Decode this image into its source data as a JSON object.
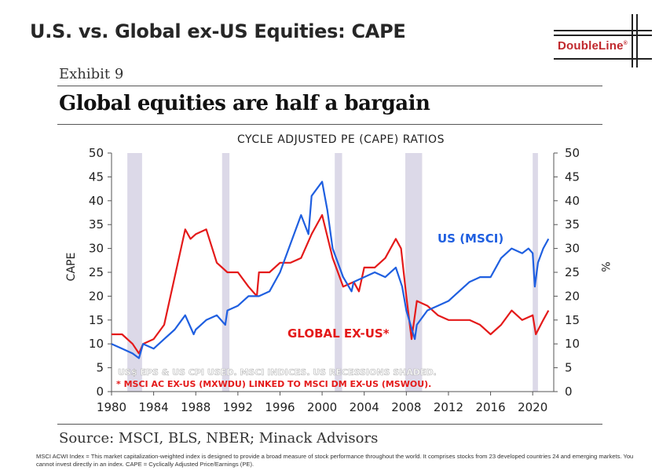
{
  "slide": {
    "title": "U.S. vs. Global ex-US Equities: CAPE",
    "logo_text": "DoubleLine",
    "logo_mark": "®",
    "exhibit_label": "Exhibit 9",
    "headline": "Global equities are half a bargain",
    "source": "Source: MSCI, BLS, NBER; Minack Advisors",
    "footnote": "MSCI ACWI Index = This market capitalization-weighted index is designed to provide a broad measure of stock performance throughout the world. It comprises stocks from 23 developed countries 24 and emerging markets. You cannot invest directly in an index. CAPE = Cyclically Adjusted Price/Earnings (PE)."
  },
  "colors": {
    "us_series": "#1f5fe0",
    "global_series": "#e41a1a",
    "recession_shading": "#dcd9e8",
    "logo_red": "#c0282d"
  },
  "chart_data": {
    "type": "line",
    "title": "CYCLE ADJUSTED PE (CAPE) RATIOS",
    "ylabel": "CAPE",
    "y2label": "%",
    "xlim": [
      1980,
      2022
    ],
    "ylim": [
      0,
      50
    ],
    "x_ticks": [
      1980,
      1984,
      1988,
      1992,
      1996,
      2000,
      2004,
      2008,
      2012,
      2016,
      2020
    ],
    "y_ticks": [
      0,
      5,
      10,
      15,
      20,
      25,
      30,
      35,
      40,
      45,
      50
    ],
    "recessions": [
      [
        1981.5,
        1982.9
      ],
      [
        1990.5,
        1991.2
      ],
      [
        2001.2,
        2001.9
      ],
      [
        2007.9,
        2009.5
      ],
      [
        2020.0,
        2020.5
      ]
    ],
    "annotations": [
      "US$ EPS & US CPI USED.  MSCI INDICES.  US RECESSIONS SHADED.",
      "* MSCI AC EX-US (MXWDU) LINKED TO MSCI DM EX-US (MSWOU)."
    ],
    "series": [
      {
        "name": "US (MSCI)",
        "x": [
          1980,
          1981,
          1982,
          1982.6,
          1983,
          1984,
          1985,
          1986,
          1987,
          1987.8,
          1988,
          1989,
          1990,
          1990.8,
          1991,
          1992,
          1993,
          1994,
          1995,
          1996,
          1997,
          1998,
          1998.7,
          1999,
          2000,
          2000.5,
          2001,
          2002,
          2002.8,
          2003,
          2004,
          2005,
          2006,
          2007,
          2007.6,
          2008,
          2008.8,
          2009,
          2010,
          2011,
          2012,
          2013,
          2014,
          2015,
          2016,
          2017,
          2018,
          2019,
          2019.6,
          2020,
          2020.2,
          2020.5,
          2021,
          2021.5
        ],
        "values": [
          10,
          9,
          8,
          7,
          10,
          9,
          11,
          13,
          16,
          12,
          13,
          15,
          16,
          14,
          17,
          18,
          20,
          20,
          21,
          25,
          31,
          37,
          33,
          41,
          44,
          38,
          30,
          24,
          21,
          23,
          24,
          25,
          24,
          26,
          22,
          17,
          11,
          14,
          17,
          18,
          19,
          21,
          23,
          24,
          24,
          28,
          30,
          29,
          30,
          29,
          22,
          27,
          30,
          32
        ]
      },
      {
        "name": "GLOBAL EX-US*",
        "x": [
          1980,
          1981,
          1982,
          1982.6,
          1983,
          1984,
          1985,
          1986,
          1987,
          1987.5,
          1988,
          1989,
          1990,
          1991,
          1992,
          1993,
          1993.8,
          1994,
          1995,
          1996,
          1997,
          1998,
          1999,
          2000,
          2001,
          2002,
          2003,
          2003.5,
          2004,
          2005,
          2006,
          2007,
          2007.5,
          2008,
          2008.5,
          2009,
          2010,
          2011,
          2012,
          2013,
          2014,
          2015,
          2016,
          2017,
          2018,
          2019,
          2020,
          2020.3,
          2021,
          2021.5
        ],
        "values": [
          12,
          12,
          10,
          8,
          10,
          11,
          14,
          24,
          34,
          32,
          33,
          34,
          27,
          25,
          25,
          22,
          20,
          25,
          25,
          27,
          27,
          28,
          33,
          37,
          28,
          22,
          23,
          21,
          26,
          26,
          28,
          32,
          30,
          20,
          11,
          19,
          18,
          16,
          15,
          15,
          15,
          14,
          12,
          14,
          17,
          15,
          16,
          12,
          15,
          17
        ]
      }
    ]
  }
}
